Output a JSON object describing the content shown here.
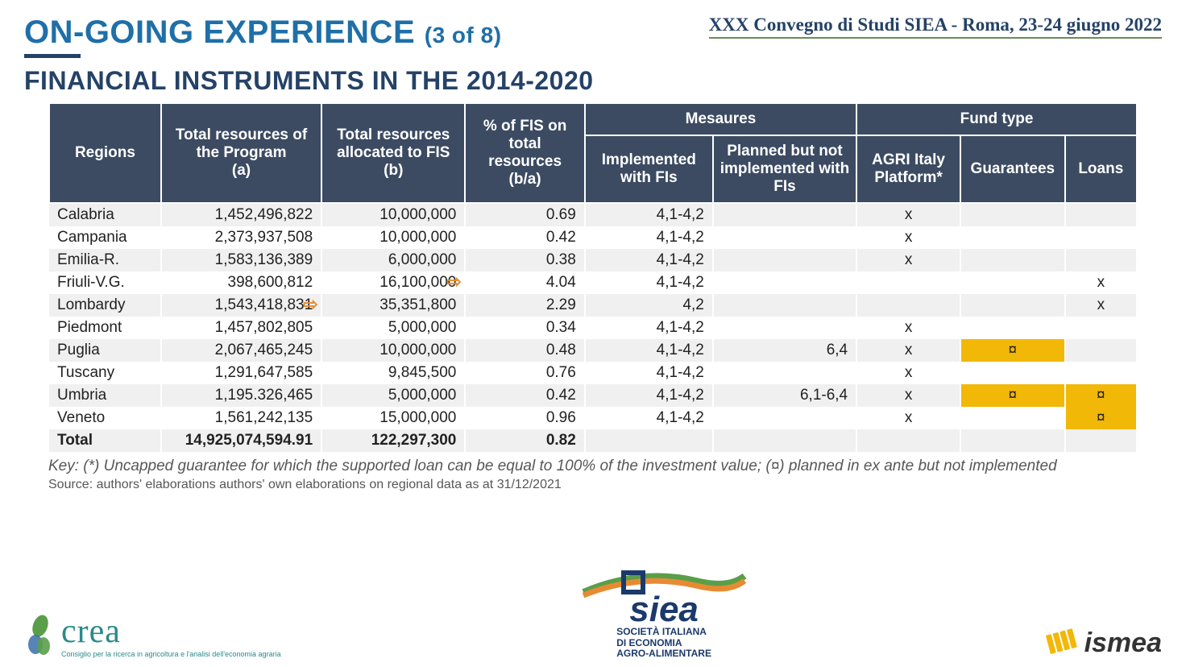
{
  "header": {
    "title": "ON-GOING EXPERIENCE",
    "page_indicator": "(3 of 8)",
    "conference": "XXX Convegno di Studi SIEA - Roma, 23-24 giugno 2022",
    "subtitle": "FINANCIAL INSTRUMENTS IN THE 2014-2020"
  },
  "table": {
    "columns": {
      "regions": "Regions",
      "total_a": "Total resources of the Program\n(a)",
      "total_b": "Total resources allocated to FIS (b)",
      "pct": "% of FIS on total resources (b/a)",
      "measures": "Mesaures",
      "measures_impl": "Implemented with FIs",
      "measures_plan": "Planned but not implemented with FIs",
      "fund": "Fund type",
      "fund_agri": "AGRI Italy Platform*",
      "fund_guar": "Guarantees",
      "fund_loans": "Loans"
    },
    "rows": [
      {
        "r": "Calabria",
        "a": "1,452,496,822",
        "b": "10,000,000",
        "p": "0.69",
        "mi": "4,1-4,2",
        "mp": "",
        "ag": "x",
        "gu": "",
        "lo": ""
      },
      {
        "r": "Campania",
        "a": "2,373,937,508",
        "b": "10,000,000",
        "p": "0.42",
        "mi": "4,1-4,2",
        "mp": "",
        "ag": "x",
        "gu": "",
        "lo": ""
      },
      {
        "r": "Emilia-R.",
        "a": "1,583,136,389",
        "b": "6,000,000",
        "p": "0.38",
        "mi": "4,1-4,2",
        "mp": "",
        "ag": "x",
        "gu": "",
        "lo": ""
      },
      {
        "r": "Friuli-V.G.",
        "a": "398,600,812",
        "b": "16,100,000",
        "p": "4.04",
        "mi": "4,1-4,2",
        "mp": "",
        "ag": "",
        "gu": "",
        "lo": "x",
        "arrow_p": true
      },
      {
        "r": "Lombardy",
        "a": "1,543,418,831",
        "b": "35,351,800",
        "p": "2.29",
        "mi": "4,2",
        "mp": "",
        "ag": "",
        "gu": "",
        "lo": "x",
        "arrow_b": true
      },
      {
        "r": "Piedmont",
        "a": "1,457,802,805",
        "b": "5,000,000",
        "p": "0.34",
        "mi": "4,1-4,2",
        "mp": "",
        "ag": "x",
        "gu": "",
        "lo": ""
      },
      {
        "r": "Puglia",
        "a": "2,067,465,245",
        "b": "10,000,000",
        "p": "0.48",
        "mi": "4,1-4,2",
        "mp": "6,4",
        "ag": "x",
        "gu": "¤",
        "lo": "",
        "gu_hl": true
      },
      {
        "r": "Tuscany",
        "a": "1,291,647,585",
        "b": "9,845,500",
        "p": "0.76",
        "mi": "4,1-4,2",
        "mp": "",
        "ag": "x",
        "gu": "",
        "lo": ""
      },
      {
        "r": "Umbria",
        "a": "1,195.326,465",
        "b": "5,000,000",
        "p": "0.42",
        "mi": "4,1-4,2",
        "mp": "6,1-6,4",
        "ag": "x",
        "gu": "¤",
        "lo": "¤",
        "gu_hl": true,
        "lo_hl": true
      },
      {
        "r": "Veneto",
        "a": "1,561,242,135",
        "b": "15,000,000",
        "p": "0.96",
        "mi": "4,1-4,2",
        "mp": "",
        "ag": "x",
        "gu": "",
        "lo": "¤",
        "lo_hl": true
      }
    ],
    "total": {
      "r": "Total",
      "a": "14,925,074,594.91",
      "b": "122,297,300",
      "p": "0.82"
    }
  },
  "notes": {
    "key": "Key: (*) Uncapped guarantee for which the supported loan can be equal to 100% of the investment value; (¤) planned in ex ante but not implemented",
    "source": "Source: authors' elaborations authors' own elaborations on regional data as at 31/12/2021"
  },
  "logos": {
    "crea": "crea",
    "crea_sub": "Consiglio per la ricerca in agricoltura e l'analisi dell'economia agraria",
    "siea": "siea",
    "siea_sub": "SOCIETÀ ITALIANA\nDI ECONOMIA\nAGRO-ALIMENTARE",
    "ismea": "ismea"
  },
  "colors": {
    "header_bg": "#3c4b62",
    "accent": "#1f6fa8",
    "highlight": "#f2b807",
    "arrow": "#e78b33"
  }
}
